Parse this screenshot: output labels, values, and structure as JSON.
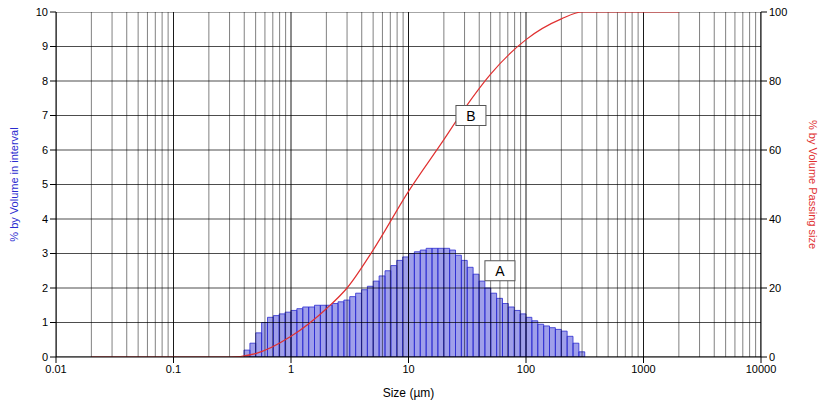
{
  "chart_data": {
    "type": "histogram",
    "x_label": "Size (µm)",
    "y_label": "% by Volume in interval",
    "y2_label": "% by Volume Passing size",
    "log": "x",
    "grid": true,
    "xlim": [
      0.01,
      10000
    ],
    "xticks": [
      0.01,
      0.1,
      1,
      10,
      100,
      1000,
      10000
    ],
    "ylim": [
      0,
      10
    ],
    "yticks": [
      0,
      1,
      2,
      3,
      4,
      5,
      6,
      7,
      8,
      9,
      10
    ],
    "y2lim": [
      0,
      100
    ],
    "y2ticks": [
      0,
      20,
      40,
      60,
      80,
      100
    ],
    "series": [
      {
        "type": "bar",
        "color": "#2b2bd0",
        "bins": [
          0.398,
          0.447,
          0.501,
          0.562,
          0.631,
          0.708,
          0.794,
          0.891,
          1,
          1.122,
          1.259,
          1.413,
          1.585,
          1.778,
          1.995,
          2.239,
          2.512,
          2.818,
          3.162,
          3.548,
          3.981,
          4.467,
          5.012,
          5.623,
          6.31,
          7.079,
          7.943,
          8.913,
          10,
          11.22,
          12.59,
          14.13,
          15.85,
          17.78,
          19.95,
          22.39,
          25.12,
          28.18,
          31.62,
          35.48,
          39.81,
          44.67,
          50.12,
          56.23,
          63.1,
          70.79,
          79.43,
          89.13,
          100,
          112.2,
          125.9,
          141.3,
          158.5,
          177.8,
          199.5,
          223.9,
          251.2,
          281.8,
          316.2
        ],
        "counts": [
          0.2,
          0.4,
          0.7,
          1.0,
          1.15,
          1.2,
          1.25,
          1.3,
          1.35,
          1.4,
          1.45,
          1.45,
          1.5,
          1.5,
          1.5,
          1.55,
          1.6,
          1.65,
          1.75,
          1.85,
          1.95,
          2.05,
          2.2,
          2.35,
          2.5,
          2.65,
          2.8,
          2.9,
          3.0,
          3.05,
          3.1,
          3.15,
          3.15,
          3.15,
          3.15,
          3.1,
          2.95,
          2.8,
          2.6,
          2.4,
          2.2,
          2.0,
          1.85,
          1.7,
          1.55,
          1.45,
          1.35,
          1.25,
          1.15,
          1.05,
          0.95,
          0.9,
          0.85,
          0.8,
          0.75,
          0.6,
          0.4,
          0.15
        ]
      },
      {
        "type": "line",
        "axis": "y2",
        "color": "#e03030",
        "x": [
          0.02,
          0.1,
          0.3,
          0.5,
          1,
          2,
          3,
          5,
          10,
          20,
          30,
          50,
          100,
          200,
          300,
          1000,
          2000
        ],
        "values": [
          0,
          0,
          0,
          1,
          6,
          14,
          20,
          31,
          48,
          63,
          72,
          82,
          92,
          98,
          100,
          100,
          100
        ]
      }
    ],
    "annotations": [
      {
        "text": "A",
        "x": 60,
        "y": 2.5
      },
      {
        "text": "B",
        "x": 34,
        "y": 70,
        "axis": "y2"
      }
    ]
  }
}
